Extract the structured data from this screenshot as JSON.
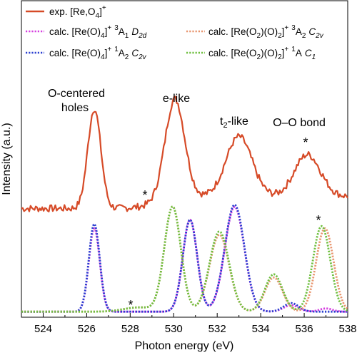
{
  "chart_data": {
    "type": "line",
    "xlabel": "Photon energy (eV)",
    "ylabel": "Intensity (a.u.)",
    "xlim": [
      523,
      538
    ],
    "xticks": [
      "524",
      "526",
      "528",
      "530",
      "532",
      "534",
      "536",
      "538"
    ],
    "grid": false,
    "legend_placement": "top",
    "series": [
      {
        "name": "exp. [Re,O4]+",
        "group": "experiment",
        "style": "solid",
        "color": "#d64a27",
        "peaks": [
          [
            526.35,
            1.0,
            0.3
          ],
          [
            530.05,
            1.0,
            0.45
          ],
          [
            533.0,
            0.6,
            0.6
          ],
          [
            536.15,
            0.42,
            0.6
          ]
        ]
      },
      {
        "name": "calc. [Re(O)4]+ 3A1 D2d",
        "group": "calculation",
        "style": "dotted",
        "color": "#d63de0",
        "peaks": [
          [
            526.35,
            0.78,
            0.25
          ],
          [
            530.75,
            0.86,
            0.33
          ],
          [
            532.8,
            0.98,
            0.45
          ],
          [
            535.4,
            0.06,
            0.35
          ],
          [
            537.0,
            0.03,
            0.3
          ]
        ]
      },
      {
        "name": "calc. [Re(O)4]+ 1A2 C2v",
        "group": "calculation",
        "style": "dotted",
        "color": "#2a3fd0",
        "peaks": [
          [
            526.35,
            0.82,
            0.25
          ],
          [
            530.75,
            0.86,
            0.33
          ],
          [
            532.8,
            1.0,
            0.45
          ],
          [
            535.4,
            0.08,
            0.35
          ]
        ]
      },
      {
        "name": "calc. [Re(O2)(O)2]+ 3A2 C2v",
        "group": "calculation",
        "style": "dotted",
        "color": "#e8956e",
        "peaks": [
          [
            528.4,
            0.04,
            0.7
          ],
          [
            529.95,
            0.98,
            0.38
          ],
          [
            532.1,
            0.72,
            0.45
          ],
          [
            534.6,
            0.32,
            0.4
          ],
          [
            536.95,
            0.78,
            0.4
          ]
        ]
      },
      {
        "name": "calc. [Re(O2)(O)2]+ 1A C1",
        "group": "calculation",
        "style": "dotted",
        "color": "#6fbf3f",
        "peaks": [
          [
            528.4,
            0.04,
            0.7
          ],
          [
            529.95,
            0.98,
            0.38
          ],
          [
            532.1,
            0.75,
            0.45
          ],
          [
            534.6,
            0.35,
            0.4
          ],
          [
            536.8,
            0.8,
            0.4
          ]
        ]
      }
    ],
    "legend": {
      "exp": {
        "text": "exp. [Re,O",
        "sub": "4",
        "sup": "+",
        "close": "]"
      },
      "calc1": {
        "a": "calc. [Re(O)",
        "sub": "4",
        "b": "]",
        "sup": "+",
        "state_sup": "3",
        "state": "A",
        "state_sub": "1",
        "sym": "D",
        "sym_sub": "2d"
      },
      "calc2": {
        "a": "calc. [Re(O)",
        "sub": "4",
        "b": "]",
        "sup": "+",
        "state_sup": "1",
        "state": "A",
        "state_sub": "2",
        "sym": "C",
        "sym_sub": "2v"
      },
      "calc3": {
        "a": "calc. [Re(O",
        "sub1": "2",
        "b": ")(O)",
        "sub2": "2",
        "c": "]",
        "sup": "+",
        "state_sup": "3",
        "state": "A",
        "state_sub": "2",
        "sym": "C",
        "sym_sub": "2v"
      },
      "calc4": {
        "a": "calc. [Re(O",
        "sub1": "2",
        "b": ")(O)",
        "sub2": "2",
        "c": "]",
        "sup": "+",
        "state_sup": "1",
        "state": "A",
        "state_sub": "",
        "sym": "C",
        "sym_sub": "1"
      }
    },
    "annotations": {
      "o_centered_1": "O-centered",
      "o_centered_2": "holes",
      "e_like": "e-like",
      "t2_like_t": "t",
      "t2_like_sub": "2",
      "t2_like_rest": "-like",
      "oo_bond": "O–O bond",
      "star": "*"
    }
  }
}
